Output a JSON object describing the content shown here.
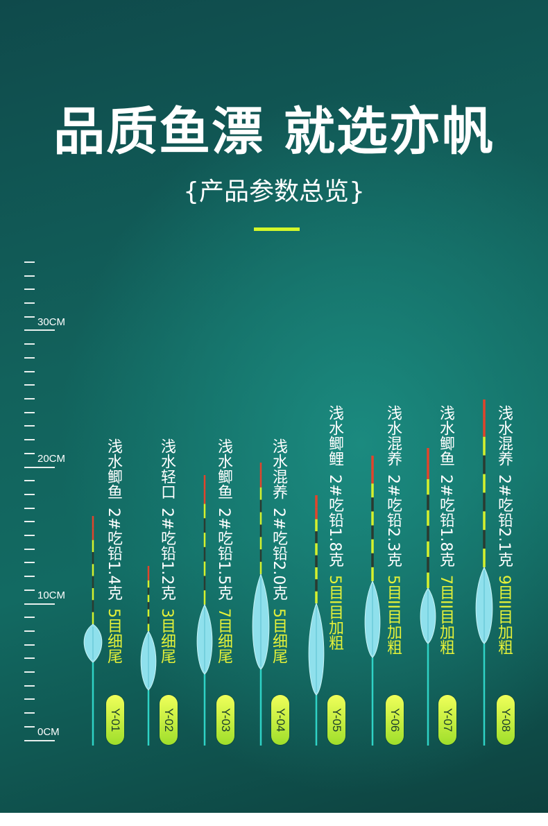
{
  "header": {
    "title": "品质鱼漂 就选亦帆",
    "subtitle": "{产品参数总览}"
  },
  "ruler": {
    "labels": [
      "30CM",
      "20CM",
      "10CM",
      "0CM"
    ]
  },
  "colors": {
    "accent": "#d3f72a",
    "tail_text": "#e6f238",
    "stick": "#2fd3c6",
    "body": "#8fe0ec",
    "antenna_red": "#e2442b",
    "antenna_yellow": "#d6f12c"
  },
  "floats": [
    {
      "name": "浅水鲫鱼",
      "spec": "2#吃铅1.4克",
      "tail": "5目细尾",
      "code": "Y-01"
    },
    {
      "name": "浅水轻口",
      "spec": "2#吃铅1.2克",
      "tail": "3目细尾",
      "code": "Y-02"
    },
    {
      "name": "浅水鲫鱼",
      "spec": "2#吃铅1.5克",
      "tail": "7目细尾",
      "code": "Y-03"
    },
    {
      "name": "浅水混养",
      "spec": "2#吃铅2.0克",
      "tail": "5目细尾",
      "code": "Y-04"
    },
    {
      "name": "浅水鲫鲤",
      "spec": "2#吃铅1.8克",
      "tail": "5目I目加粗",
      "code": "Y-05"
    },
    {
      "name": "浅水混养",
      "spec": "2#吃铅2.3克",
      "tail": "5目II目加粗",
      "code": "Y-06"
    },
    {
      "name": "浅水鲫鱼",
      "spec": "2#吃铅1.8克",
      "tail": "7目II目加粗",
      "code": "Y-07"
    },
    {
      "name": "浅水混养",
      "spec": "2#吃铅2.1克",
      "tail": "9目II目加粗",
      "code": "Y-08"
    }
  ]
}
